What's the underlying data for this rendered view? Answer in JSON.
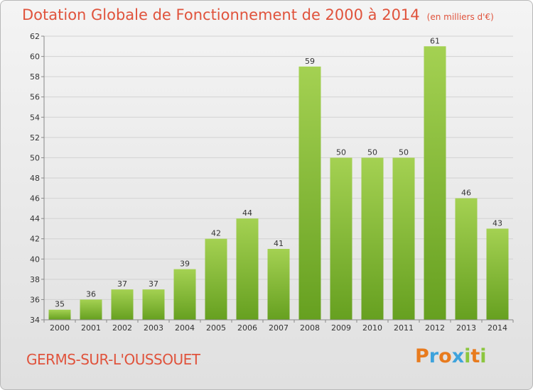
{
  "title": "Dotation Globale de Fonctionnement de 2000 à 2014",
  "unit_note": "(en milliers d'€)",
  "commune": "GERMS-SUR-L'OUSSOUET",
  "logo_text": "Proxiti",
  "colors": {
    "title": "#e0533c",
    "bar_top": "#a4d152",
    "bar_bottom": "#66a020",
    "logo": [
      "#e87b1e",
      "#3ea3dc",
      "#e87b1e",
      "#3ea3dc",
      "#8cc63f",
      "#e87b1e",
      "#8cc63f"
    ]
  },
  "chart_data": {
    "type": "bar",
    "categories": [
      "2000",
      "2001",
      "2002",
      "2003",
      "2004",
      "2005",
      "2006",
      "2007",
      "2008",
      "2009",
      "2010",
      "2011",
      "2012",
      "2013",
      "2014"
    ],
    "values": [
      35,
      36,
      37,
      37,
      39,
      42,
      44,
      41,
      59,
      50,
      50,
      50,
      61,
      46,
      43
    ],
    "ylim": [
      34,
      62
    ],
    "yticks": [
      34,
      36,
      38,
      40,
      42,
      44,
      46,
      48,
      50,
      52,
      54,
      56,
      58,
      60,
      62
    ],
    "grid": true,
    "data_labels": true
  }
}
